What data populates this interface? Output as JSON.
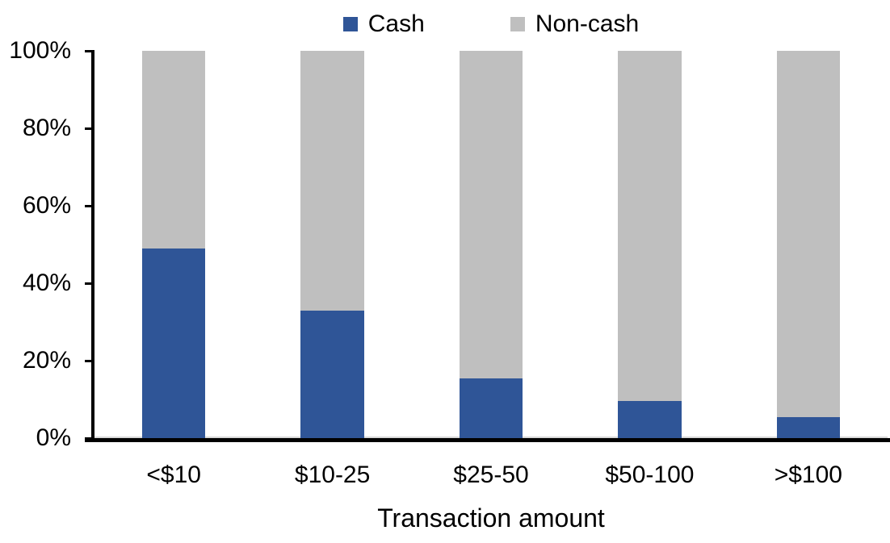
{
  "chart_data": {
    "type": "bar",
    "variant": "100%-stacked-column",
    "title": "",
    "xlabel": "Transaction amount",
    "ylabel": "",
    "categories": [
      "<$10",
      "$10-25",
      "$25-50",
      "$50-100",
      ">$100"
    ],
    "series": [
      {
        "name": "Cash",
        "color": "#2F5597",
        "values": [
          49,
          33,
          15.5,
          9.5,
          5.5
        ]
      },
      {
        "name": "Non-cash",
        "color": "#BFBFBF",
        "values": [
          51,
          67,
          84.5,
          90.5,
          94.5
        ]
      }
    ],
    "ylim": [
      0,
      100
    ],
    "yticks": [
      "0%",
      "20%",
      "40%",
      "60%",
      "80%",
      "100%"
    ],
    "grid": false,
    "legend_position": "top-center",
    "axis_color": "#000000",
    "zero_gridline_color": "#D9D9D9"
  }
}
